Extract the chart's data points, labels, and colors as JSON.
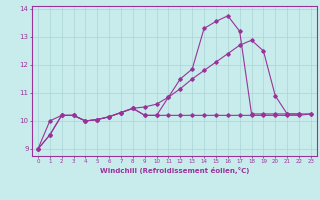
{
  "bg_color": "#c8ecec",
  "grid_color": "#b0d8d8",
  "line_color": "#993399",
  "xlabel": "Windchill (Refroidissement éolien,°C)",
  "xlim": [
    -0.5,
    23.5
  ],
  "ylim": [
    8.75,
    14.1
  ],
  "yticks": [
    9,
    10,
    11,
    12,
    13,
    14
  ],
  "xticks": [
    0,
    1,
    2,
    3,
    4,
    5,
    6,
    7,
    8,
    9,
    10,
    11,
    12,
    13,
    14,
    15,
    16,
    17,
    18,
    19,
    20,
    21,
    22,
    23
  ],
  "series1_x": [
    0,
    1,
    2,
    3,
    4,
    5,
    6,
    7,
    8,
    9,
    10,
    11,
    12,
    13,
    14,
    15,
    16,
    17,
    18,
    19,
    20,
    21,
    22,
    23
  ],
  "series1_y": [
    9.0,
    9.5,
    10.2,
    10.2,
    10.0,
    10.05,
    10.15,
    10.3,
    10.45,
    10.2,
    10.2,
    10.85,
    11.5,
    11.85,
    13.3,
    13.55,
    13.75,
    13.2,
    10.25,
    10.25,
    10.25,
    10.25,
    10.25,
    10.25
  ],
  "series2_x": [
    0,
    1,
    2,
    3,
    4,
    5,
    6,
    7,
    8,
    9,
    10,
    11,
    12,
    13,
    14,
    15,
    16,
    17,
    18,
    19,
    20,
    21,
    22
  ],
  "series2_y": [
    9.0,
    9.5,
    10.2,
    10.2,
    10.0,
    10.05,
    10.15,
    10.3,
    10.45,
    10.5,
    10.6,
    10.85,
    11.15,
    11.5,
    11.8,
    12.1,
    12.4,
    12.7,
    12.88,
    12.5,
    10.9,
    10.25,
    10.25
  ],
  "series3_x": [
    0,
    1,
    2,
    3,
    4,
    5,
    6,
    7,
    8,
    9,
    10,
    11,
    12,
    13,
    14,
    15,
    16,
    17,
    18,
    19,
    20,
    21,
    22,
    23
  ],
  "series3_y": [
    9.0,
    10.0,
    10.2,
    10.2,
    10.0,
    10.05,
    10.15,
    10.3,
    10.45,
    10.2,
    10.2,
    10.2,
    10.2,
    10.2,
    10.2,
    10.2,
    10.2,
    10.2,
    10.2,
    10.2,
    10.2,
    10.2,
    10.2,
    10.25
  ]
}
